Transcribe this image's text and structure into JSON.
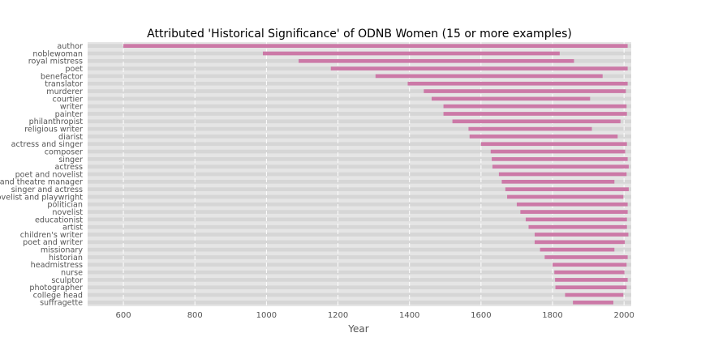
{
  "chart_data": {
    "type": "bar",
    "orientation": "horizontal",
    "title": "Attributed 'Historical Significance' of ODNB Women (15 or more examples)",
    "xlabel": "Year",
    "ylabel": "",
    "xlim": [
      500,
      2020
    ],
    "xticks": [
      600,
      800,
      1000,
      1200,
      1400,
      1600,
      1800,
      2000
    ],
    "grid": true,
    "legend": "none",
    "colors": {
      "bar": "#cc79a7",
      "background": "#e5e5e5",
      "grid": "#ffffff",
      "band": "#d6d6d6"
    },
    "categories": [
      "author",
      "noblewoman",
      "royal mistress",
      "poet",
      "benefactor",
      "translator",
      "murderer",
      "courtier",
      "writer",
      "painter",
      "philanthropist",
      "religious writer",
      "diarist",
      "actress and singer",
      "composer",
      "singer",
      "actress",
      "poet and novelist",
      "actress and theatre manager",
      "singer and actress",
      "novelist and playwright",
      "politician",
      "novelist",
      "educationist",
      "artist",
      "children's writer",
      "poet and writer",
      "missionary",
      "historian",
      "headmistress",
      "nurse",
      "sculptor",
      "photographer",
      "college head",
      "suffragette"
    ],
    "series": [
      {
        "start": [
          600,
          990,
          1090,
          1180,
          1305,
          1395,
          1440,
          1462,
          1495,
          1495,
          1520,
          1565,
          1568,
          1600,
          1627,
          1630,
          1632,
          1650,
          1658,
          1668,
          1673,
          1700,
          1710,
          1725,
          1733,
          1750,
          1750,
          1765,
          1778,
          1800,
          1805,
          1807,
          1808,
          1835,
          1857
        ],
        "end": [
          2010,
          1820,
          1860,
          2010,
          1940,
          2010,
          2005,
          1905,
          2007,
          2008,
          1990,
          1910,
          1982,
          2008,
          2003,
          2010,
          2013,
          2007,
          1973,
          2013,
          1998,
          2010,
          2010,
          2008,
          2008,
          2012,
          2002,
          1973,
          2010,
          2007,
          2001,
          2010,
          2007,
          1998,
          1970
        ]
      }
    ]
  }
}
